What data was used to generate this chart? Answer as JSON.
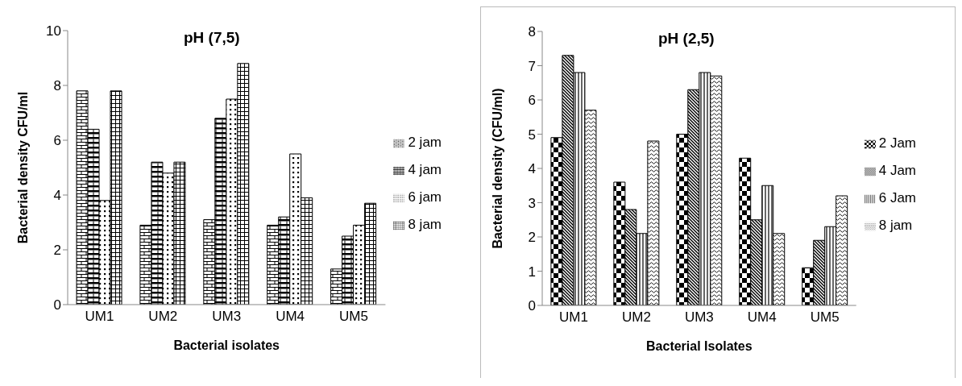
{
  "chart_data": [
    {
      "type": "bar",
      "title": "pH (7,5)",
      "xlabel": "Bacterial isolates",
      "ylabel": "Bacterial density  CFU/ml",
      "categories": [
        "UM1",
        "UM2",
        "UM3",
        "UM4",
        "UM5"
      ],
      "ylim": [
        0,
        10
      ],
      "yticks": [
        0,
        2,
        4,
        6,
        8,
        10
      ],
      "legend": "right",
      "series": [
        {
          "name": "2 jam",
          "color": "#000000",
          "values": [
            7.8,
            2.9,
            3.1,
            2.9,
            1.3
          ]
        },
        {
          "name": "4 jam",
          "color": "#000000",
          "values": [
            6.4,
            5.2,
            6.8,
            3.2,
            2.5
          ]
        },
        {
          "name": "6 jam",
          "color": "#000000",
          "values": [
            3.8,
            4.8,
            7.5,
            5.5,
            2.9
          ]
        },
        {
          "name": "8 jam",
          "color": "#000000",
          "values": [
            7.8,
            5.2,
            8.8,
            3.9,
            3.7
          ]
        }
      ]
    },
    {
      "type": "bar",
      "title": "pH (2,5)",
      "xlabel": "Bacterial Isolates",
      "ylabel": "Bacterial density  (CFU/ml)",
      "categories": [
        "UM1",
        "UM2",
        "UM3",
        "UM4",
        "UM5"
      ],
      "ylim": [
        0,
        8
      ],
      "yticks": [
        0,
        1,
        2,
        3,
        4,
        5,
        6,
        7,
        8
      ],
      "legend": "right",
      "series": [
        {
          "name": "2 Jam",
          "color": "#000000",
          "values": [
            4.9,
            3.6,
            5.0,
            4.3,
            1.1
          ]
        },
        {
          "name": "4 Jam",
          "color": "#000000",
          "values": [
            7.3,
            2.8,
            6.3,
            2.5,
            1.9
          ]
        },
        {
          "name": "6 Jam",
          "color": "#000000",
          "values": [
            6.8,
            2.1,
            6.8,
            3.5,
            2.3
          ]
        },
        {
          "name": "8 jam",
          "color": "#000000",
          "values": [
            5.7,
            4.8,
            6.7,
            2.1,
            3.2
          ]
        }
      ]
    }
  ]
}
